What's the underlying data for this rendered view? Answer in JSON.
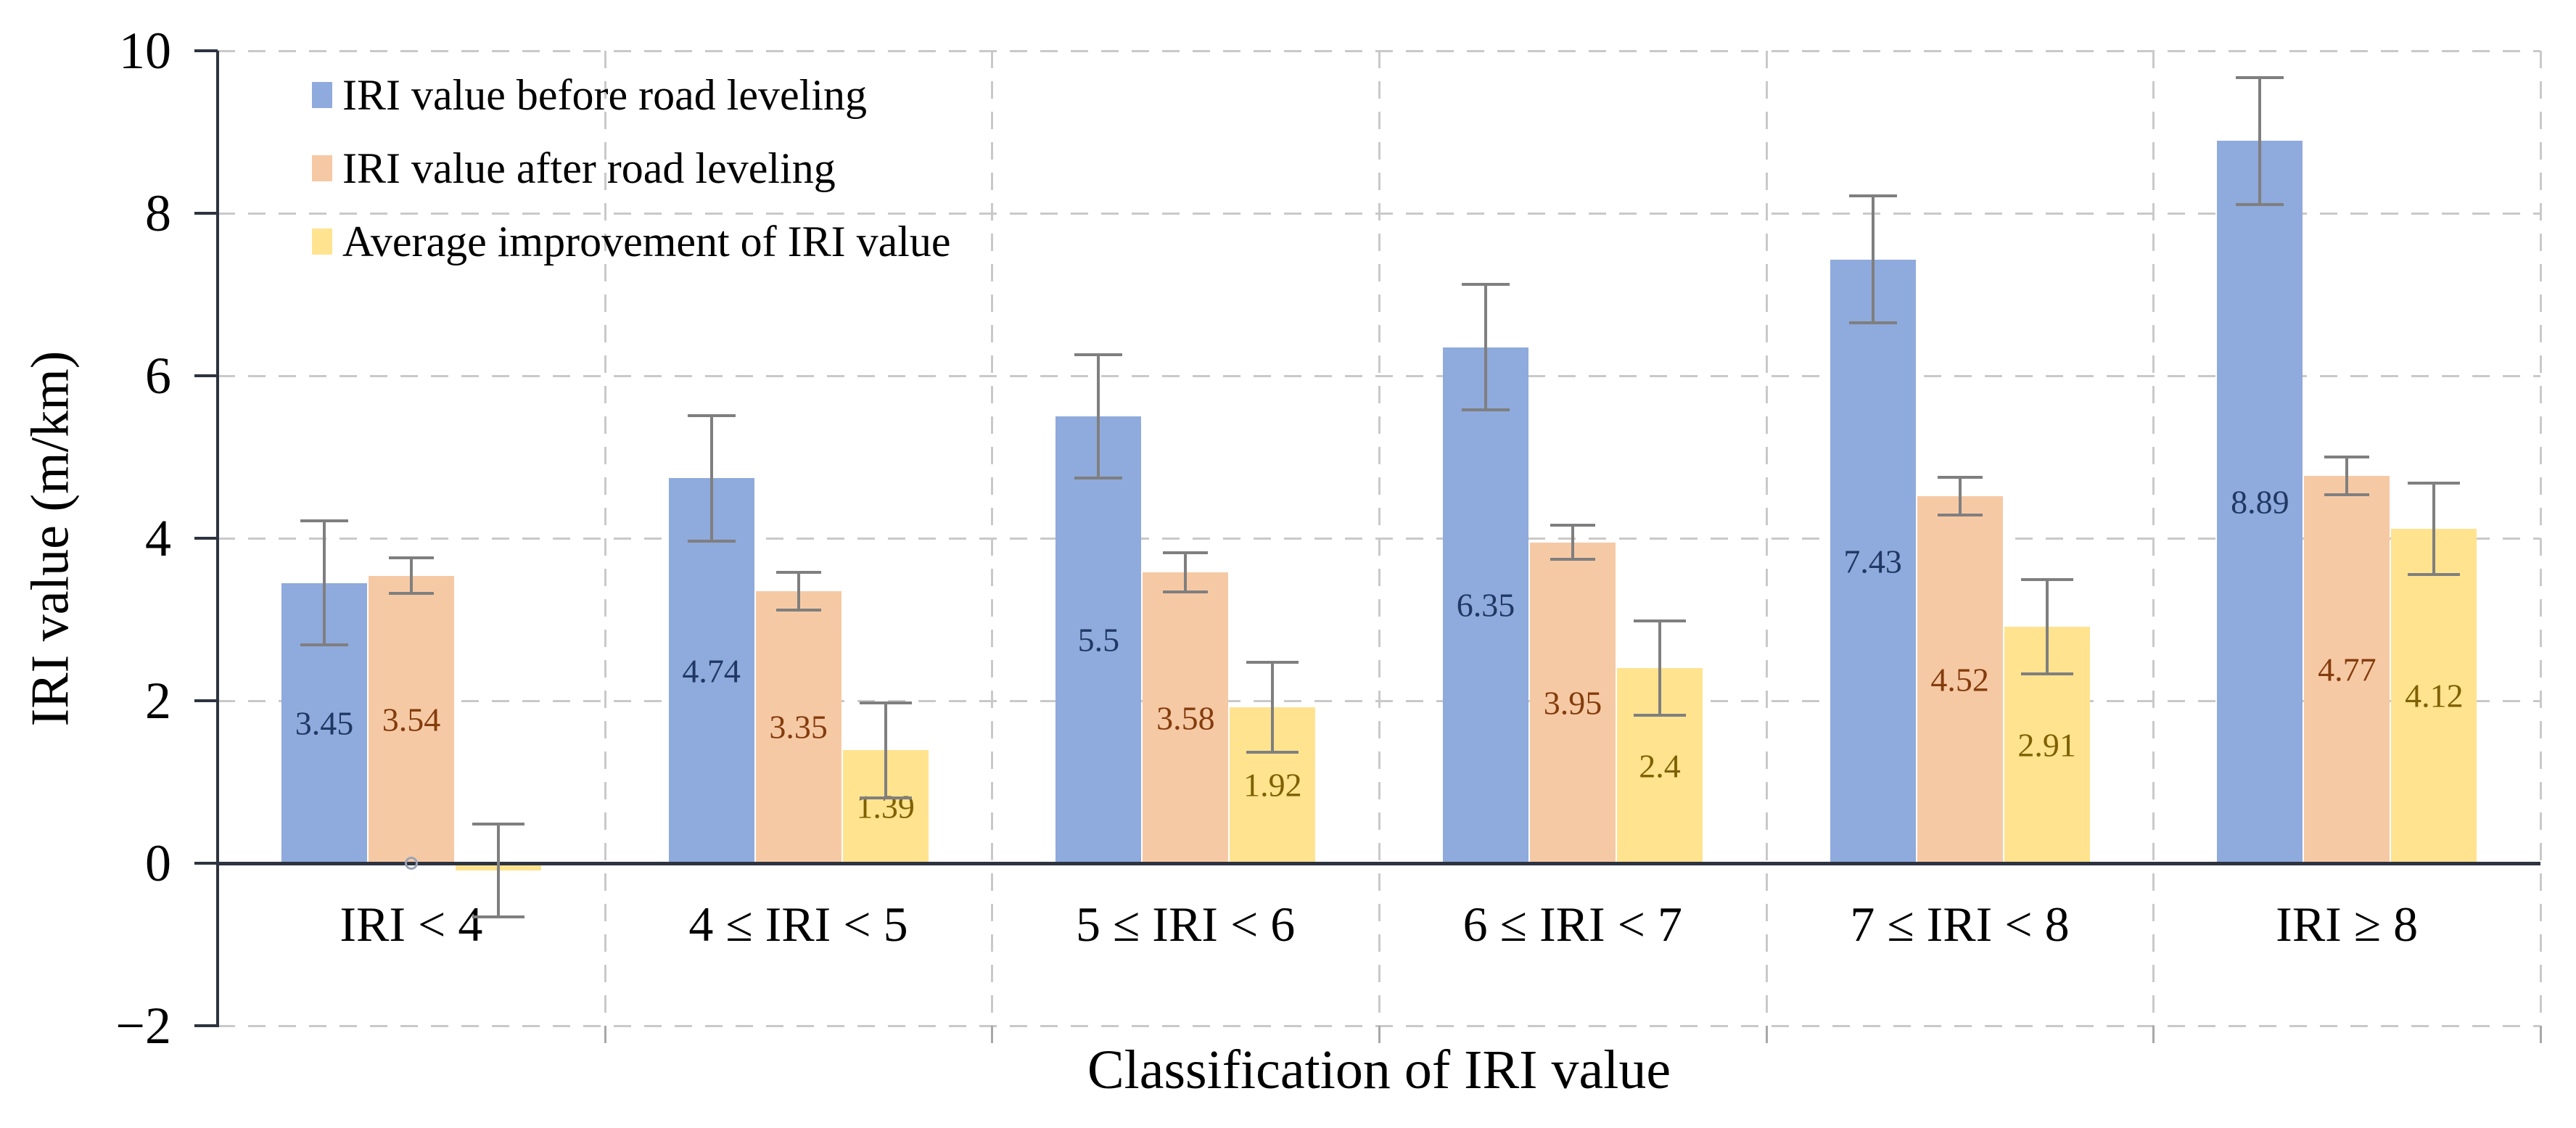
{
  "figure": {
    "background": "#FFFFFF"
  },
  "chart_data": {
    "type": "bar",
    "title": "",
    "xlabel": "Classification of IRI value",
    "ylabel": "IRI value (m/km)",
    "categories": [
      "IRI < 4",
      "4 ≤ IRI < 5",
      "5 ≤ IRI < 6",
      "6 ≤ IRI < 7",
      "7 ≤ IRI < 8",
      "IRI ≥ 8"
    ],
    "series": [
      {
        "name": "IRI value before road leveling",
        "color": "#8FAADC",
        "label_color": "#1F3864",
        "values": [
          3.45,
          4.74,
          5.5,
          6.35,
          7.43,
          8.89
        ],
        "value_labels": [
          "3.45",
          "4.74",
          "5.5",
          "6.35",
          "7.43",
          "8.89"
        ],
        "error_bars": [
          0.78,
          0.79,
          0.78,
          0.79,
          0.8,
          0.8
        ]
      },
      {
        "name": "IRI value after road leveling",
        "color": "#F6C9A5",
        "label_color": "#843C0C",
        "values": [
          3.54,
          3.35,
          3.58,
          3.95,
          4.52,
          4.77
        ],
        "value_labels": [
          "3.54",
          "3.35",
          "3.58",
          "3.95",
          "4.52",
          "4.77"
        ],
        "error_bars": [
          0.24,
          0.25,
          0.26,
          0.23,
          0.25,
          0.25
        ]
      },
      {
        "name": "Average improvement of IRI value",
        "color": "#FFE38F",
        "label_color": "#7F6000",
        "values": [
          -0.09,
          1.39,
          1.92,
          2.4,
          2.91,
          4.12
        ],
        "value_labels": [
          "",
          "1.39",
          "1.92",
          "2.4",
          "2.91",
          "4.12"
        ],
        "error_bars": [
          0.59,
          0.6,
          0.57,
          0.6,
          0.6,
          0.58
        ]
      }
    ],
    "ylim": [
      -2,
      10
    ],
    "yticks": [
      10,
      8,
      6,
      4,
      2,
      0,
      -2
    ],
    "y_tick_labels": [
      "10",
      "8",
      "6",
      "4",
      "2",
      "0",
      "−2"
    ],
    "grid": true,
    "legend_position": "top-left-inside",
    "marker": {
      "category_index": 0,
      "series_index": 1,
      "value": 0,
      "shape": "open-circle"
    },
    "colors": {
      "grid": "#C9C9C9",
      "axis": "#2D3440",
      "error_bar": "#7F7F7F",
      "minor_tick": "#A8A8A8",
      "text": "#000000",
      "marker_ring": "#9AA4B8"
    }
  }
}
